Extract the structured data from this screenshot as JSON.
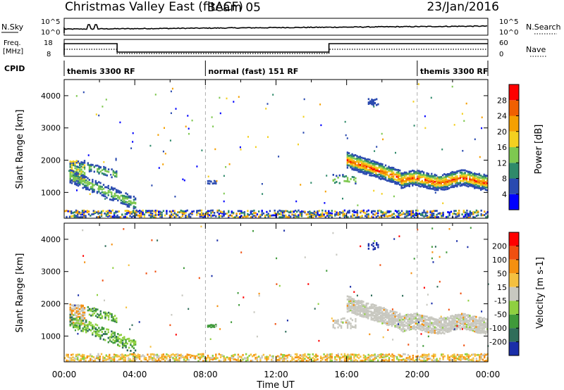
{
  "header": {
    "title": "Christmas Valley East (fitACF)",
    "beam": "Beam 05",
    "date": "23/Jan/2016"
  },
  "status_panels": {
    "nsky_label": "N.Sky",
    "nsearch_label": "N.Search",
    "freq_label_1": "Freq.",
    "freq_label_2": "[MHz]",
    "nave_label": "Nave",
    "cpid_label": "CPID",
    "noise_left_ticks": [
      "10^5",
      "10^0"
    ],
    "noise_right_ticks": [
      "10^5",
      "10^0"
    ],
    "freq_left_ticks": [
      "18",
      "8"
    ],
    "freq_right_ticks": [
      "60",
      "0"
    ]
  },
  "cpid_segments": [
    {
      "label": "themis 3300 RF",
      "start_hour": 0,
      "end_hour": 8
    },
    {
      "label": "normal (fast) 151 RF",
      "start_hour": 8,
      "end_hour": 20
    },
    {
      "label": "themis 3300 RF",
      "start_hour": 20,
      "end_hour": 24
    }
  ],
  "chart_data": [
    {
      "type": "heatmap",
      "name": "Power",
      "ylabel": "Slant Range [km]",
      "yticks": [
        "1000",
        "2000",
        "3000",
        "4000"
      ],
      "ylim": [
        200,
        4500
      ],
      "xlim_hours": [
        0,
        24
      ],
      "colorbar_label": "Power [dB]",
      "colorbar_ticks": [
        "4",
        "8",
        "12",
        "16",
        "20",
        "24",
        "28"
      ],
      "colors": [
        "#0000ff",
        "#2a4ab0",
        "#2f8a6a",
        "#7ec850",
        "#f4d020",
        "#f5a000",
        "#f06000",
        "#ff0000"
      ]
    },
    {
      "type": "heatmap",
      "name": "Velocity",
      "ylabel": "Slant Range [km]",
      "yticks": [
        "1000",
        "2000",
        "3000",
        "4000"
      ],
      "ylim": [
        200,
        4500
      ],
      "xlim_hours": [
        0,
        24
      ],
      "xticks": [
        "00:00",
        "04:00",
        "08:00",
        "12:00",
        "16:00",
        "20:00",
        "00:00"
      ],
      "xlabel": "Time UT",
      "colorbar_label": "Velocity [m s-1]",
      "colorbar_ticks": [
        "200",
        "100",
        "50",
        "15",
        "-15",
        "-50",
        "-100",
        "-200"
      ],
      "colors": [
        "#1a2ea8",
        "#2f6e5a",
        "#3f9a3a",
        "#8fd040",
        "#c8c8c0",
        "#f4c040",
        "#f59010",
        "#f05010",
        "#ff0000"
      ]
    }
  ]
}
